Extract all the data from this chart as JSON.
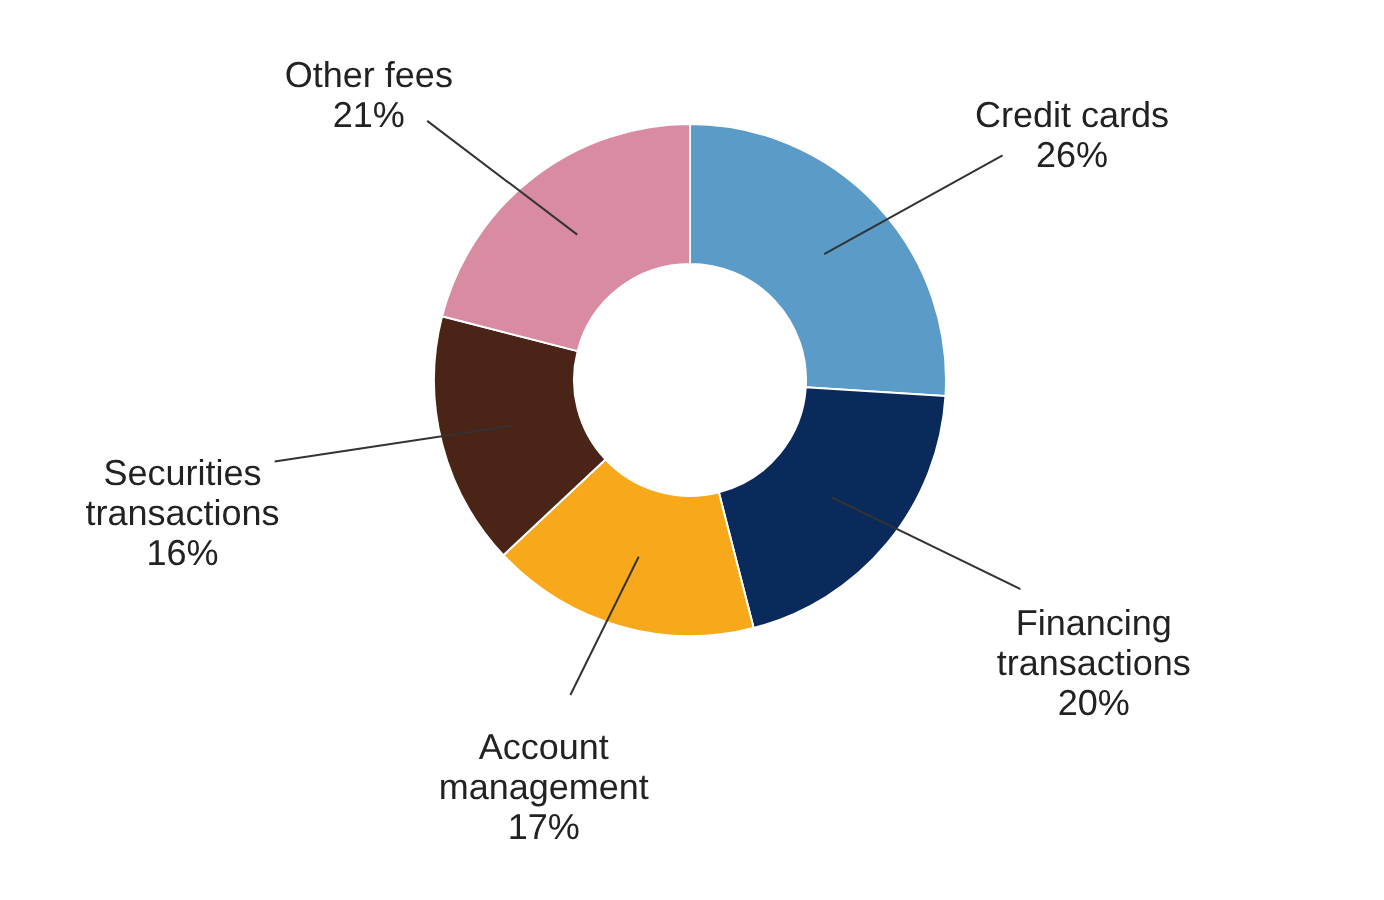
{
  "chart_data": {
    "type": "donut",
    "categories": [
      "Credit cards",
      "Financing transactions",
      "Account management",
      "Securities transactions",
      "Other fees"
    ],
    "values": [
      26,
      20,
      17,
      16,
      21
    ],
    "colors": [
      "#5b9bc8",
      "#0b2a5c",
      "#f7a81b",
      "#4a2416",
      "#d98ba2"
    ],
    "value_labels": [
      "26%",
      "20%",
      "17%",
      "16%",
      "21%"
    ]
  }
}
